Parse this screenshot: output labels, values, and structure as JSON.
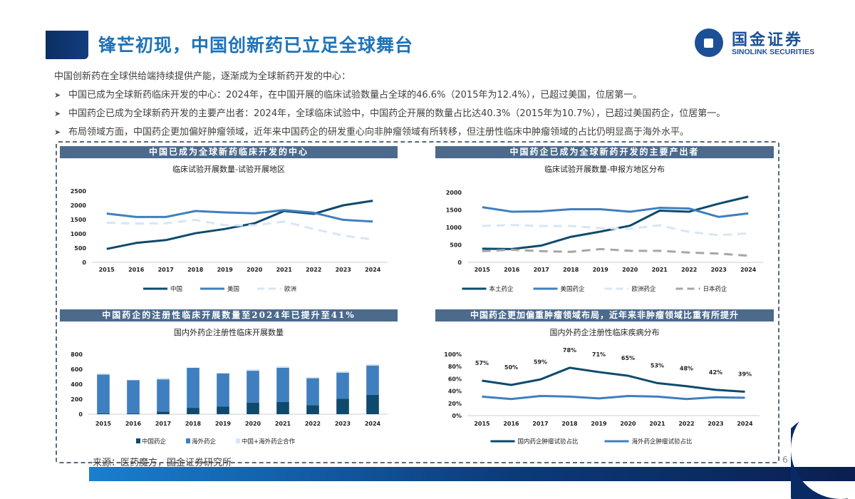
{
  "header": {
    "title": "锋芒初现，中国创新药已立足全球舞台",
    "logo_cn": "国金证券",
    "logo_en": "SINOLINK SECURITIES"
  },
  "intro": "中国创新药在全球供给端持续提供产能，逐渐成为全球新药开发的中心：",
  "bullets": [
    "中国已成为全球新药临床开发的中心：2024年，在中国开展的临床试验数量占全球的46.6%（2015年为12.4%），已超过美国，位居第一。",
    "中国药企已成为全球新药开发的主要产出者：2024年，全球临床试验中，中国药企开展的数量占比达40.3%（2015年为10.7%），已超过美国药企，位居第一。",
    "布局领域方面，中国药企更加偏好肿瘤领域，近年来中国药企的研发重心向非肿瘤领域有所转移，但注册性临床中肿瘤领域的占比仍明显高于海外水平。"
  ],
  "footer": {
    "source": "来源：医药魔方，国金证券研究所",
    "page": "6"
  },
  "colors": {
    "dark": "#0d4a6d",
    "mid": "#3f7fbf",
    "light": "#d7e6f4",
    "gray": "#a6a6a6",
    "header_bar": "#4b6a8c",
    "title": "#1f73b7"
  },
  "chart_data": [
    {
      "type": "line",
      "header": "中国已成为全球新药临床开发的中心",
      "title": "临床试验开展数量-试验开展地区",
      "categories": [
        "2015",
        "2016",
        "2017",
        "2018",
        "2019",
        "2020",
        "2021",
        "2022",
        "2023",
        "2024"
      ],
      "ylim": [
        0,
        2500
      ],
      "yticks": [
        "0",
        "500",
        "1000",
        "1500",
        "2000",
        "2500"
      ],
      "legend": "bottom",
      "series": [
        {
          "name": "中国",
          "color": "#0d4a6d",
          "dash": false,
          "values": [
            470,
            680,
            780,
            1020,
            1170,
            1370,
            1800,
            1700,
            2000,
            2160
          ]
        },
        {
          "name": "美国",
          "color": "#3f7fbf",
          "dash": false,
          "values": [
            1710,
            1590,
            1590,
            1800,
            1750,
            1720,
            1830,
            1740,
            1490,
            1430
          ]
        },
        {
          "name": "欧洲",
          "color": "#d7e6f4",
          "dash": true,
          "values": [
            1390,
            1360,
            1370,
            1490,
            1300,
            1300,
            1430,
            1170,
            940,
            800
          ]
        }
      ]
    },
    {
      "type": "line",
      "header": "中国药企已成为全球新药开发的主要产出者",
      "title": "临床试验开展数量-申报方地区分布",
      "categories": [
        "2015",
        "2016",
        "2017",
        "2018",
        "2019",
        "2020",
        "2021",
        "2022",
        "2023",
        "2024"
      ],
      "ylim": [
        0,
        2000
      ],
      "yticks": [
        "0",
        "500",
        "1000",
        "1500",
        "2000"
      ],
      "legend": "bottom",
      "series": [
        {
          "name": "本土药企",
          "color": "#0d4a6d",
          "dash": false,
          "values": [
            390,
            380,
            480,
            730,
            880,
            1050,
            1480,
            1450,
            1680,
            1880
          ]
        },
        {
          "name": "美国药企",
          "color": "#3f7fbf",
          "dash": false,
          "values": [
            1580,
            1450,
            1460,
            1520,
            1520,
            1450,
            1560,
            1540,
            1300,
            1400
          ]
        },
        {
          "name": "欧洲药企",
          "color": "#d7e6f4",
          "dash": true,
          "values": [
            1040,
            1070,
            1040,
            1040,
            980,
            960,
            1060,
            870,
            780,
            830
          ]
        },
        {
          "name": "日本药企",
          "color": "#a6a6a6",
          "dash": true,
          "values": [
            320,
            360,
            320,
            300,
            380,
            330,
            330,
            280,
            250,
            190
          ]
        }
      ]
    },
    {
      "type": "bar",
      "stacked": true,
      "header": "中国药企的注册性临床开展数量至2024年已提升至41%",
      "title": "国内外药企注册性临床开展数量",
      "categories": [
        "2015",
        "2016",
        "2017",
        "2018",
        "2019",
        "2020",
        "2021",
        "2022",
        "2023",
        "2024"
      ],
      "ylim": [
        0,
        800
      ],
      "yticks": [
        "0",
        "200",
        "400",
        "600",
        "800"
      ],
      "legend": "bottom",
      "series": [
        {
          "name": "中国药企",
          "color": "#0d4a6d",
          "values": [
            10,
            10,
            35,
            85,
            100,
            155,
            165,
            120,
            205,
            260
          ]
        },
        {
          "name": "海外药企",
          "color": "#3f7fbf",
          "values": [
            520,
            445,
            430,
            535,
            445,
            425,
            455,
            360,
            350,
            390
          ]
        },
        {
          "name": "中国+海外药企合作",
          "color": "#d7e6f4",
          "values": [
            15,
            5,
            20,
            0,
            0,
            20,
            20,
            15,
            20,
            20
          ]
        }
      ]
    },
    {
      "type": "line",
      "header": "中国药企更加偏重肿瘤领域布局，近年来非肿瘤领域比重有所提升",
      "title": "国内外药企注册性临床疾病分布",
      "categories": [
        "2015",
        "2016",
        "2017",
        "2018",
        "2019",
        "2020",
        "2021",
        "2022",
        "2023",
        "2024"
      ],
      "ylim": [
        0,
        100
      ],
      "yticks": [
        "0%",
        "20%",
        "40%",
        "60%",
        "80%",
        "100%"
      ],
      "legend": "bottom",
      "series": [
        {
          "name": "国内药企肿瘤试验占比",
          "color": "#0d4a6d",
          "dash": false,
          "values": [
            57,
            50,
            59,
            78,
            71,
            65,
            53,
            48,
            42,
            39
          ],
          "data_labels": [
            "57%",
            "50%",
            "59%",
            "78%",
            "71%",
            "65%",
            "53%",
            "48%",
            "42%",
            "39%"
          ]
        },
        {
          "name": "海外药企肿瘤试验占比",
          "color": "#3f7fbf",
          "dash": false,
          "values": [
            31,
            27,
            32,
            31,
            28,
            32,
            31,
            27,
            30,
            29
          ]
        }
      ]
    }
  ]
}
